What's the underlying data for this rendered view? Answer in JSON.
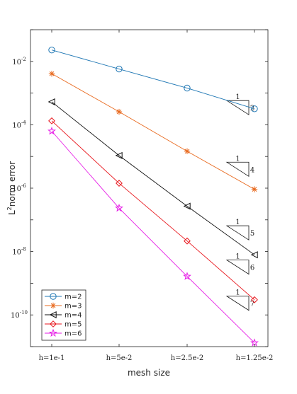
{
  "chart_data": {
    "type": "line",
    "title": "",
    "xlabel": "mesh size",
    "ylabel_main": "L",
    "ylabel_sup": "2",
    "ylabel_rest": "norm error",
    "y_scale": "log",
    "ylim": [
      1e-11,
      0.1
    ],
    "categories": [
      "h=1e-1",
      "h=5e-2",
      "h=2.5e-2",
      "h=1.25e-2"
    ],
    "y_ticks": [
      {
        "value": 0.01,
        "base": "10",
        "exp": "-2"
      },
      {
        "value": 0.0001,
        "base": "10",
        "exp": "-4"
      },
      {
        "value": 1e-06,
        "base": "10",
        "exp": "-6"
      },
      {
        "value": 1e-08,
        "base": "10",
        "exp": "-8"
      },
      {
        "value": 1e-10,
        "base": "10",
        "exp": "-10"
      }
    ],
    "grid": false,
    "legend_position": "bottom-left",
    "series": [
      {
        "name": "m=2",
        "marker": "circle",
        "color": "#1f77b4",
        "values": [
          0.0229,
          0.00575,
          0.00144,
          0.00032
        ]
      },
      {
        "name": "m=3",
        "marker": "asterisk",
        "color": "#e8681c",
        "values": [
          0.0041,
          0.000257,
          1.46e-05,
          9.2e-07
        ]
      },
      {
        "name": "m=4",
        "marker": "triangle-left",
        "color": "#111111",
        "values": [
          0.00053,
          1.07e-05,
          2.7e-07,
          7.9e-09
        ]
      },
      {
        "name": "m=5",
        "marker": "diamond",
        "color": "#e8161c",
        "values": [
          0.000133,
          1.43e-06,
          2.15e-08,
          3e-10
        ]
      },
      {
        "name": "m=6",
        "marker": "pentagram",
        "color": "#e61ce6",
        "values": [
          6.3e-05,
          2.35e-07,
          1.65e-09,
          1.32e-11
        ]
      }
    ],
    "slope_triangles": [
      {
        "run": "1",
        "rise": "2",
        "anchor_y": 0.00058
      },
      {
        "run": "1",
        "rise": "4",
        "anchor_y": 6.6e-06
      },
      {
        "run": "1",
        "rise": "5",
        "anchor_y": 6.5e-08
      },
      {
        "run": "1",
        "rise": "6",
        "anchor_y": 5.4e-09
      },
      {
        "run": "1",
        "rise": "7",
        "anchor_y": 3.9e-10
      }
    ]
  }
}
